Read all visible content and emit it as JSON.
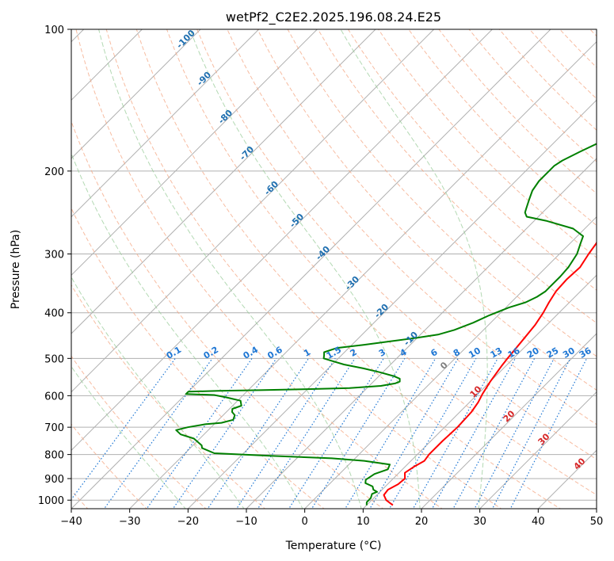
{
  "chart_data": {
    "type": "line",
    "title": "wetPf2_C2E2.2025.196.08.24.E25",
    "xlabel": "Temperature (°C)",
    "ylabel": "Pressure (hPa)",
    "xlim": [
      -40,
      50
    ],
    "ylim": [
      1050,
      100
    ],
    "yscale": "log",
    "grid": true,
    "x_ticks": [
      -40,
      -30,
      -20,
      -10,
      0,
      10,
      20,
      30,
      40,
      50
    ],
    "y_ticks": [
      1000,
      900,
      800,
      700,
      600,
      500,
      400,
      300,
      200,
      100
    ],
    "series": [
      {
        "role": "temperature",
        "color": "#ff0000",
        "points": [
          [
            14.5,
            1025
          ],
          [
            12.5,
            1000
          ],
          [
            11.2,
            975
          ],
          [
            11.0,
            950
          ],
          [
            11.8,
            925
          ],
          [
            12.0,
            900
          ],
          [
            11.0,
            875
          ],
          [
            11.5,
            850
          ],
          [
            12.3,
            825
          ],
          [
            12.0,
            800
          ],
          [
            12.0,
            750
          ],
          [
            12.2,
            700
          ],
          [
            12.0,
            650
          ],
          [
            11.5,
            620
          ],
          [
            10.8,
            595
          ],
          [
            10.0,
            560
          ],
          [
            9.3,
            520
          ],
          [
            9.0,
            500
          ],
          [
            8.5,
            460
          ],
          [
            8.0,
            425
          ],
          [
            7.3,
            400
          ],
          [
            6.5,
            380
          ],
          [
            5.8,
            360
          ],
          [
            5.6,
            340
          ],
          [
            5.8,
            320
          ],
          [
            5.0,
            300
          ],
          [
            4.5,
            285
          ],
          [
            3.5,
            268
          ],
          [
            2.5,
            258
          ],
          [
            1.8,
            250
          ],
          [
            2.0,
            245
          ],
          [
            3.8,
            237
          ],
          [
            4.5,
            230
          ],
          [
            6.0,
            218
          ],
          [
            7.5,
            200
          ],
          [
            7.8,
            190
          ],
          [
            7.5,
            180
          ],
          [
            6.8,
            170
          ],
          [
            6.2,
            160
          ],
          [
            6.3,
            150
          ],
          [
            6.5,
            145
          ],
          [
            8.0,
            130
          ],
          [
            9.5,
            120
          ],
          [
            11.0,
            112
          ],
          [
            12.5,
            106
          ],
          [
            13.5,
            100
          ]
        ]
      },
      {
        "role": "dewpoint",
        "color": "#008000",
        "points": [
          [
            10.0,
            1025
          ],
          [
            9.5,
            1010
          ],
          [
            9.5,
            990
          ],
          [
            9.0,
            970
          ],
          [
            9.5,
            960
          ],
          [
            8.5,
            950
          ],
          [
            7.8,
            935
          ],
          [
            6.0,
            920
          ],
          [
            5.5,
            905
          ],
          [
            6.0,
            880
          ],
          [
            7.5,
            860
          ],
          [
            7.0,
            840
          ],
          [
            2.0,
            825
          ],
          [
            -4.0,
            815
          ],
          [
            -15.0,
            805
          ],
          [
            -25.0,
            795
          ],
          [
            -28.0,
            775
          ],
          [
            -28.5,
            765
          ],
          [
            -31.0,
            740
          ],
          [
            -34.0,
            725
          ],
          [
            -35.5,
            710
          ],
          [
            -34.0,
            700
          ],
          [
            -31.5,
            690
          ],
          [
            -29.0,
            685
          ],
          [
            -27.5,
            675
          ],
          [
            -28.0,
            660
          ],
          [
            -29.0,
            650
          ],
          [
            -29.5,
            640
          ],
          [
            -28.5,
            630
          ],
          [
            -29.5,
            615
          ],
          [
            -31.0,
            610
          ],
          [
            -32.5,
            605
          ],
          [
            -35.0,
            598
          ],
          [
            -40.0,
            595
          ],
          [
            -40.0,
            588
          ],
          [
            -35.0,
            586
          ],
          [
            -28.0,
            584
          ],
          [
            -20.0,
            581
          ],
          [
            -13.0,
            578
          ],
          [
            -8.0,
            572
          ],
          [
            -6.0,
            565
          ],
          [
            -5.5,
            560
          ],
          [
            -6.0,
            552
          ],
          [
            -7.5,
            545
          ],
          [
            -10.5,
            535
          ],
          [
            -14.0,
            525
          ],
          [
            -18.0,
            515
          ],
          [
            -21.0,
            505
          ],
          [
            -22.5,
            500
          ],
          [
            -23.0,
            492
          ],
          [
            -23.5,
            485
          ],
          [
            -22.0,
            475
          ],
          [
            -18.0,
            468
          ],
          [
            -14.0,
            460
          ],
          [
            -10.0,
            452
          ],
          [
            -7.0,
            445
          ],
          [
            -5.0,
            435
          ],
          [
            -3.0,
            420
          ],
          [
            -1.5,
            405
          ],
          [
            0.5,
            390
          ],
          [
            2.5,
            380
          ],
          [
            3.5,
            370
          ],
          [
            4.0,
            360
          ],
          [
            4.0,
            350
          ],
          [
            4.0,
            335
          ],
          [
            3.8,
            320
          ],
          [
            3.0,
            300
          ],
          [
            1.8,
            285
          ],
          [
            1.0,
            275
          ],
          [
            -2.0,
            265
          ],
          [
            -8.0,
            255
          ],
          [
            -12.0,
            250
          ],
          [
            -13.0,
            245
          ],
          [
            -13.5,
            240
          ],
          [
            -14.5,
            230
          ],
          [
            -15.5,
            220
          ],
          [
            -16.0,
            210
          ],
          [
            -16.0,
            200
          ],
          [
            -16.0,
            195
          ],
          [
            -15.5,
            190
          ],
          [
            -14.0,
            182
          ],
          [
            -12.5,
            175
          ],
          [
            -11.5,
            165
          ],
          [
            -10.5,
            155
          ],
          [
            -9.5,
            145
          ],
          [
            -9.0,
            135
          ],
          [
            -8.5,
            125
          ],
          [
            -7.0,
            118
          ],
          [
            -5.0,
            110
          ],
          [
            -3.0,
            103
          ],
          [
            -1.5,
            100
          ]
        ]
      }
    ],
    "dry_adiabat_labels": [
      "-100",
      "-90",
      "-80",
      "-70",
      "-60",
      "-50",
      "-40",
      "-30",
      "-20",
      "-10",
      "0",
      "10",
      "20",
      "30",
      "40"
    ],
    "mixing_ratio_labels": [
      "0.1",
      "0.2",
      "0.4",
      "0.6",
      "1",
      "1.5",
      "2",
      "3",
      "4",
      "6",
      "8",
      "10",
      "13",
      "16",
      "20",
      "25",
      "30",
      "36"
    ],
    "style": {
      "isotherm_color": "#b0b0b0",
      "isobar_color": "#b0b0b0",
      "dry_adiabat_color": "#f4a582",
      "moist_adiabat_color": "#99cc99",
      "mixing_ratio_color": "#1f77d4",
      "dry_label_color": "#1f6fb0",
      "warm_label_color": "#d62728",
      "zero_label_color": "#808080"
    }
  }
}
